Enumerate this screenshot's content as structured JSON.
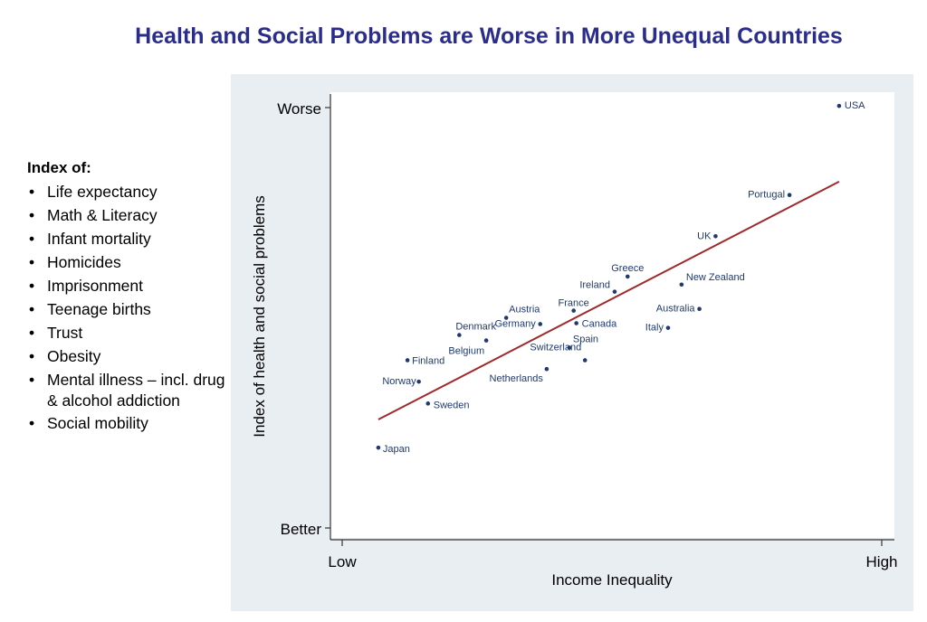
{
  "title": "Health and Social Problems are Worse in More Unequal Countries",
  "legend": {
    "heading": "Index of:",
    "items": [
      "Life expectancy",
      "Math & Literacy",
      "Infant mortality",
      "Homicides",
      "Imprisonment",
      "Teenage births",
      "Trust",
      "Obesity",
      "Mental illness – incl. drug & alcohol addiction",
      "Social mobility"
    ]
  },
  "chart_data": {
    "type": "scatter",
    "title": "Health and Social Problems are Worse in More Unequal Countries",
    "xlabel": "Income Inequality",
    "ylabel": "Index of health and social problems",
    "x_tick_labels": [
      "Low",
      "High"
    ],
    "y_tick_labels": [
      "Better",
      "Worse"
    ],
    "xlim": [
      0,
      100
    ],
    "ylim": [
      0,
      100
    ],
    "grid": false,
    "point_color": "#1f3a6e",
    "line_color": "#9e2a2b",
    "points": [
      {
        "label": "USA",
        "x": 92.1,
        "y": 100.4
      },
      {
        "label": "Portugal",
        "x": 82.9,
        "y": 79.2
      },
      {
        "label": "UK",
        "x": 69.2,
        "y": 69.4
      },
      {
        "label": "New Zealand",
        "x": 62.9,
        "y": 57.9
      },
      {
        "label": "Greece",
        "x": 52.9,
        "y": 59.8
      },
      {
        "label": "Ireland",
        "x": 50.5,
        "y": 56.2
      },
      {
        "label": "France",
        "x": 42.9,
        "y": 51.7
      },
      {
        "label": "Australia",
        "x": 66.2,
        "y": 52.1
      },
      {
        "label": "Canada",
        "x": 43.4,
        "y": 48.7
      },
      {
        "label": "Italy",
        "x": 60.4,
        "y": 47.6
      },
      {
        "label": "Austria",
        "x": 30.4,
        "y": 50.0
      },
      {
        "label": "Germany",
        "x": 36.7,
        "y": 48.5
      },
      {
        "label": "Denmark",
        "x": 21.7,
        "y": 45.9
      },
      {
        "label": "Belgium",
        "x": 26.7,
        "y": 44.6
      },
      {
        "label": "Spain",
        "x": 42.1,
        "y": 42.9
      },
      {
        "label": "Switzerland",
        "x": 45.0,
        "y": 39.9
      },
      {
        "label": "Netherlands",
        "x": 37.9,
        "y": 37.8
      },
      {
        "label": "Finland",
        "x": 12.1,
        "y": 39.9
      },
      {
        "label": "Norway",
        "x": 14.2,
        "y": 34.8
      },
      {
        "label": "Sweden",
        "x": 15.9,
        "y": 29.6
      },
      {
        "label": "Japan",
        "x": 6.7,
        "y": 19.1
      }
    ],
    "trendline": {
      "x": [
        6.7,
        92.1
      ],
      "y": [
        25.8,
        82.4
      ]
    }
  }
}
